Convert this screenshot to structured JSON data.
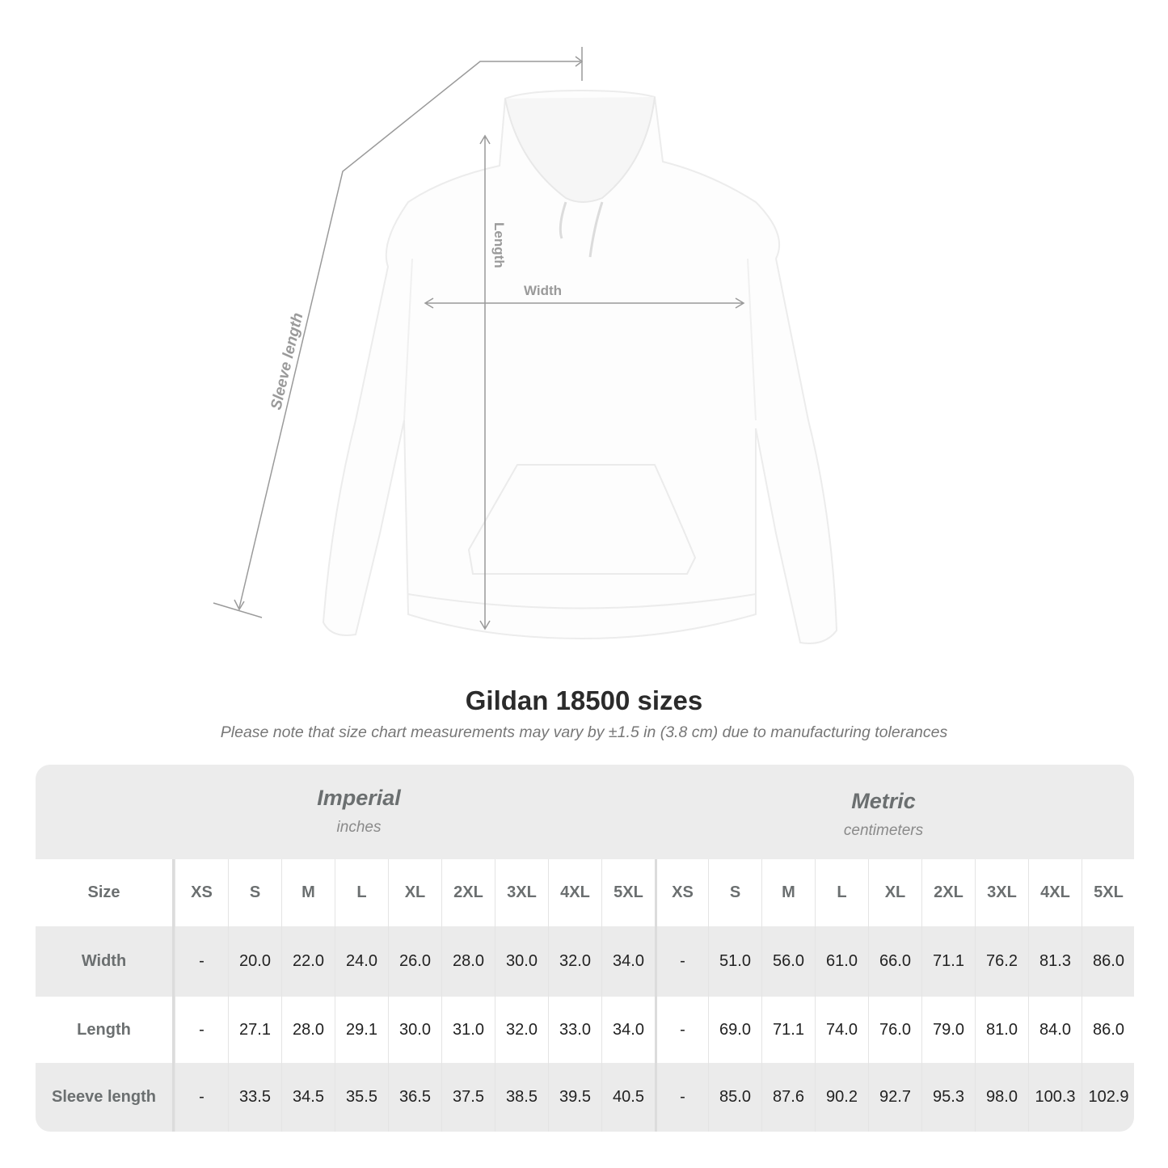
{
  "illustration": {
    "labels": {
      "sleeve_length": "Sleeve length",
      "length": "Length",
      "width": "Width"
    },
    "garment_color": "#ffffff",
    "line_color": "#9a9a9a"
  },
  "title": "Gildan 18500 sizes",
  "subtitle": "Please note that size chart measurements may vary by ±1.5 in (3.8 cm) due to manufacturing tolerances",
  "table": {
    "imperial": {
      "heading": "Imperial",
      "unit": "inches"
    },
    "metric": {
      "heading": "Metric",
      "unit": "centimeters"
    },
    "size_label": "Size",
    "sizes": [
      "XS",
      "S",
      "M",
      "L",
      "XL",
      "2XL",
      "3XL",
      "4XL",
      "5XL"
    ],
    "rows": [
      {
        "label": "Width",
        "imperial": [
          "-",
          "20.0",
          "22.0",
          "24.0",
          "26.0",
          "28.0",
          "30.0",
          "32.0",
          "34.0"
        ],
        "metric": [
          "-",
          "51.0",
          "56.0",
          "61.0",
          "66.0",
          "71.1",
          "76.2",
          "81.3",
          "86.0"
        ]
      },
      {
        "label": "Length",
        "imperial": [
          "-",
          "27.1",
          "28.0",
          "29.1",
          "30.0",
          "31.0",
          "32.0",
          "33.0",
          "34.0"
        ],
        "metric": [
          "-",
          "69.0",
          "71.1",
          "74.0",
          "76.0",
          "79.0",
          "81.0",
          "84.0",
          "86.0"
        ]
      },
      {
        "label": "Sleeve length",
        "imperial": [
          "-",
          "33.5",
          "34.5",
          "35.5",
          "36.5",
          "37.5",
          "38.5",
          "39.5",
          "40.5"
        ],
        "metric": [
          "-",
          "85.0",
          "87.6",
          "90.2",
          "92.7",
          "95.3",
          "98.0",
          "100.3",
          "102.9"
        ]
      }
    ]
  }
}
